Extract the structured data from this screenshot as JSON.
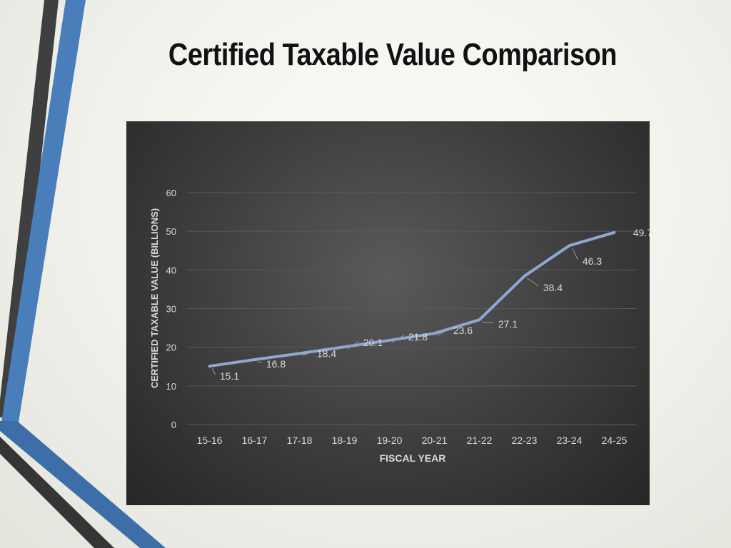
{
  "slide": {
    "title": "Certified Taxable Value Comparison"
  },
  "colors": {
    "line": "#8ea7d3",
    "label": "#d9d9d9",
    "grid": "#595959",
    "accent_blue": "#4a7ebb",
    "accent_dark": "#3a3a3a"
  },
  "chart_data": {
    "type": "line",
    "title": "",
    "xlabel": "FISCAL YEAR",
    "ylabel": "CERTIFIED TAXABLE VALUE (BILLIONS)",
    "categories": [
      "15-16",
      "16-17",
      "17-18",
      "18-19",
      "19-20",
      "20-21",
      "21-22",
      "22-23",
      "23-24",
      "24-25"
    ],
    "series": [
      {
        "values": [
          15.1,
          16.8,
          18.4,
          20.1,
          21.8,
          23.6,
          27.1,
          38.4,
          46.3,
          49.7
        ],
        "data_labels": [
          "15.1",
          "16.8",
          "18.4",
          "20.1",
          "21.8",
          "23.6",
          "27.1",
          "38.4",
          "46.3",
          "49.7"
        ]
      }
    ],
    "ylim": [
      0,
      60
    ],
    "yticks": [
      "0",
      "10",
      "20",
      "30",
      "40",
      "50",
      "60"
    ],
    "grid": true,
    "legend": "none"
  }
}
